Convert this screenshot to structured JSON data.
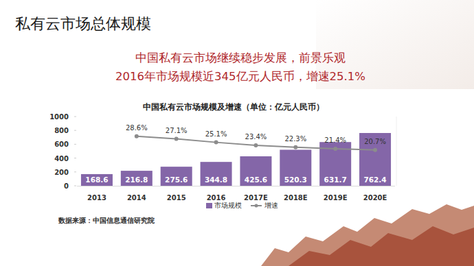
{
  "page": {
    "title": "私有云市场总体规模",
    "headline": [
      "中国私有云市场继续稳步发展，前景乐观",
      "2016年市场规模近345亿元人民币，增速25.1%"
    ],
    "source": "数据来源：中国信息通信研究院"
  },
  "chart_data": {
    "type": "bar",
    "title": "中国私有云市场规模及增速（单位：亿元人民币）",
    "categories": [
      "2013",
      "2014",
      "2015",
      "2016",
      "2017E",
      "2018E",
      "2019E",
      "2020E"
    ],
    "series": [
      {
        "name": "市场规模",
        "type": "bar",
        "color": "#8466a8",
        "values": [
          168.6,
          216.8,
          275.6,
          344.8,
          425.6,
          520.3,
          631.7,
          762.4
        ]
      },
      {
        "name": "增速",
        "type": "line",
        "axis": "y2",
        "color": "#8c8c8c",
        "marker": "circle",
        "values": [
          null,
          28.6,
          27.1,
          25.1,
          23.4,
          22.3,
          21.4,
          20.7
        ],
        "value_labels": [
          null,
          "28.6%",
          "27.1%",
          "25.1%",
          "23.4%",
          "22.3%",
          "21.4%",
          "20.7%"
        ]
      }
    ],
    "ylim": [
      0,
      1000
    ],
    "yticks": [
      0,
      200,
      400,
      600,
      800,
      1000
    ],
    "y2lim": [
      0,
      40
    ],
    "grid": false,
    "data_labels": true,
    "tick_labels": "y",
    "legend": "bottom"
  }
}
